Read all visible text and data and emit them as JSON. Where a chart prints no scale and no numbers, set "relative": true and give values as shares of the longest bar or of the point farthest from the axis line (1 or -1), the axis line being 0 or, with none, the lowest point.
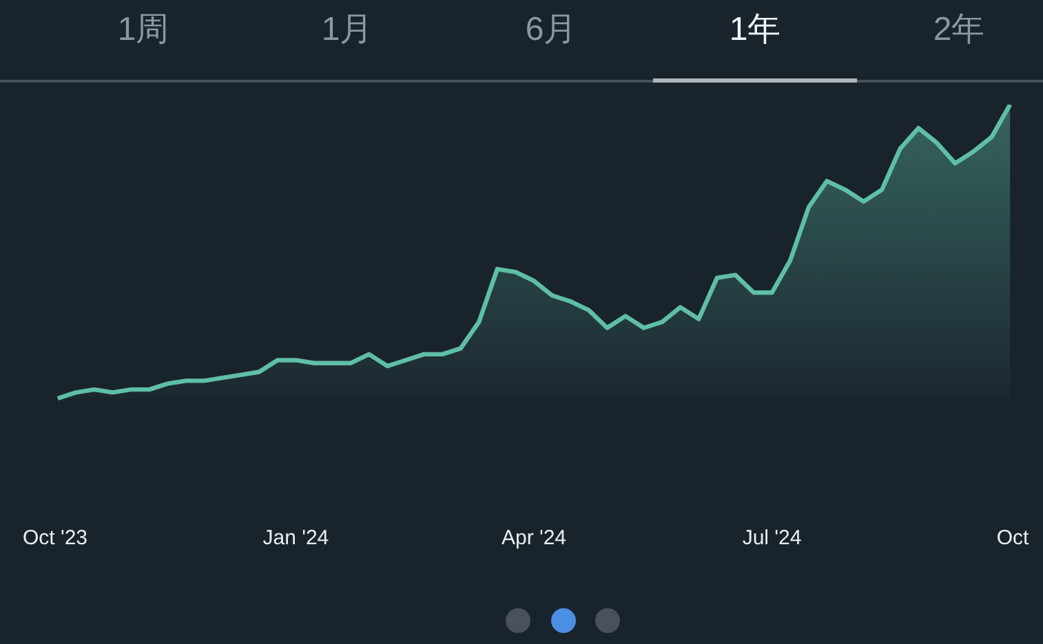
{
  "chart_data": {
    "type": "area",
    "relative": true,
    "color": "#5fbfa5",
    "annotations": [
      "1周",
      "1月",
      "6月",
      "1年",
      "2年"
    ],
    "x": [
      "2023-10-02",
      "2023-10-09",
      "2023-10-16",
      "2023-10-23",
      "2023-10-30",
      "2023-11-06",
      "2023-11-13",
      "2023-11-20",
      "2023-11-27",
      "2023-12-04",
      "2023-12-11",
      "2023-12-18",
      "2023-12-25",
      "2024-01-01",
      "2024-01-08",
      "2024-01-15",
      "2024-01-22",
      "2024-01-29",
      "2024-02-05",
      "2024-02-12",
      "2024-02-19",
      "2024-02-26",
      "2024-03-04",
      "2024-03-11",
      "2024-03-18",
      "2024-03-25",
      "2024-04-01",
      "2024-04-08",
      "2024-04-15",
      "2024-04-22",
      "2024-04-29",
      "2024-05-06",
      "2024-05-13",
      "2024-05-20",
      "2024-05-27",
      "2024-06-03",
      "2024-06-10",
      "2024-06-17",
      "2024-06-24",
      "2024-07-01",
      "2024-07-08",
      "2024-07-15",
      "2024-07-22",
      "2024-07-29",
      "2024-08-05",
      "2024-08-12",
      "2024-08-19",
      "2024-08-26",
      "2024-09-02",
      "2024-09-09",
      "2024-09-16",
      "2024-09-23",
      "2024-09-30"
    ],
    "values": [
      0,
      0.02,
      0.03,
      0.02,
      0.03,
      0.03,
      0.05,
      0.06,
      0.06,
      0.07,
      0.08,
      0.09,
      0.13,
      0.13,
      0.12,
      0.12,
      0.12,
      0.15,
      0.11,
      0.13,
      0.15,
      0.15,
      0.17,
      0.26,
      0.44,
      0.43,
      0.4,
      0.35,
      0.33,
      0.3,
      0.24,
      0.28,
      0.24,
      0.26,
      0.31,
      0.27,
      0.41,
      0.42,
      0.36,
      0.36,
      0.47,
      0.65,
      0.74,
      0.71,
      0.67,
      0.71,
      0.85,
      0.92,
      0.87,
      0.8,
      0.84,
      0.89,
      1
    ],
    "xlim": [
      "2023-10-01",
      "2024-10-01"
    ],
    "xticks": [
      {
        "value": "2023-10-01",
        "label": "Oct '23"
      },
      {
        "value": "2024-01-01",
        "label": "Jan '24"
      },
      {
        "value": "2024-04-01",
        "label": "Apr '24"
      },
      {
        "value": "2024-07-01",
        "label": "Jul '24"
      },
      {
        "value": "2024-10-01",
        "label": "Oct"
      }
    ]
  }
}
